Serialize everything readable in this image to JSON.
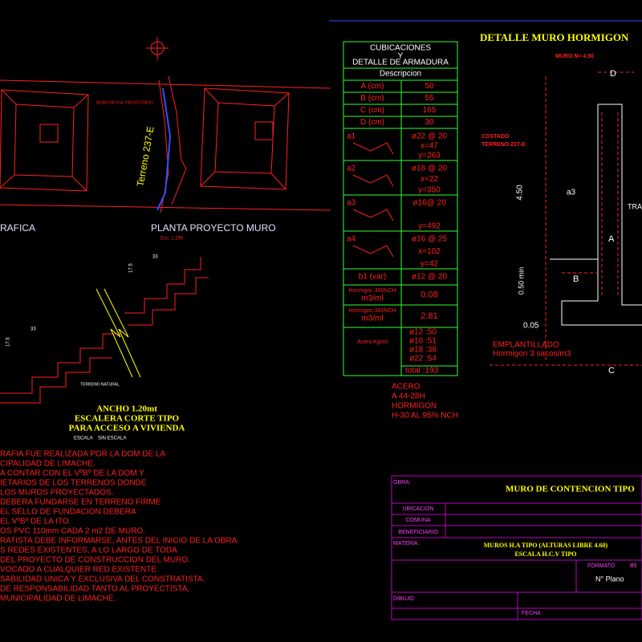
{
  "plan": {
    "left_label": "RAFICA",
    "title": "PLANTA PROYECTO MURO",
    "scale": "Esc. 1:250",
    "terrain": "Terreno 237-E",
    "note": "MURO DE H.A. PROYECTADO"
  },
  "stair": {
    "title": "ANCHO 1.20mt",
    "subtitle": "ESCALERA CORTE TIPO",
    "subtitle2": "PARA ACCESO A VIVIENDA",
    "scale_label": "ESCALA",
    "scale_value": "SIN ESCALA",
    "tread": "33",
    "riser": "17.5",
    "tread2": "33",
    "riser2": "17.5",
    "ground": "TERRENO NATURAL"
  },
  "table": {
    "title": "CUBICACIONES",
    "title2": "Y",
    "title3": "DETALLE DE ARMADURA",
    "header": "Descripcion",
    "dims": [
      [
        "A (cm)",
        "50"
      ],
      [
        "B (cm)",
        "55"
      ],
      [
        "C (cm)",
        "165"
      ],
      [
        "D (cm)",
        "30"
      ]
    ],
    "bars": [
      {
        "name": "a1",
        "spec": [
          "ø22 @ 20",
          "x=47",
          "y=263"
        ]
      },
      {
        "name": "a2",
        "spec": [
          "ø18 @ 20",
          "x=22",
          "y=350"
        ]
      },
      {
        "name": "a3",
        "spec": [
          "ø16@ 20",
          "y=492"
        ]
      },
      {
        "name": "a4",
        "spec": [
          "ø16 @ 25",
          "x=102",
          "y=42"
        ]
      }
    ],
    "b1": [
      "b1 (var)",
      "ø12 @ 20"
    ],
    "concrete": [
      [
        "Hormigon 300NCH",
        "m3/ml",
        "0.08"
      ],
      [
        "Hormigon 300NCH",
        "m3/ml",
        "2.81"
      ]
    ],
    "steel": {
      "label": "Acero Kg/ml",
      "items": [
        "ø12 :50",
        "ø16 :51",
        "ø18 :38",
        "ø22 :54"
      ],
      "total": "total :193"
    }
  },
  "materials": [
    "ACERO",
    "A 44-28H",
    "HORMIGON",
    "H-30 AL 95% NCH"
  ],
  "notes": [
    "RAFIA FUE REALIZADA POR LA DOM DE LA",
    "CIPALIDAD DE LIMACHE.",
    "A CONTAR CON EL VºBº DE LA DOM Y",
    "IETARIOS DE LOS TERRENOS DONDE",
    "LOS MUROS PROYECTADOS.",
    "DEBERA FUNDARSE EN TERRENO FIRME",
    "EL SELLO DE FUNDACION DEBERA",
    "EL VºBº DE LA ITO.",
    "OS PVC 110mm CADA 2 m2 DE MURO.",
    "RATISTA DEBE INFORMARSE, ANTES DEL INICIO DE LA OBRA.",
    "S REDES EXISTENTES, A LO LARGO DE TODA",
    "DEL PROYECTO DE CONSTRUCCION DEL MURO.",
    "VOCADO A CUALQUIER RED EXISTENTE",
    "SABILIDAD UNICA Y EXCLUSIVA DEL CONSTRATISTA.",
    "DE RESPONSABILIDAD TANTO AL PROYECTISTA,",
    "MUNICIPALIDAD DE LIMACHE."
  ],
  "detail": {
    "title": "DETALLE MURO HORMIGON",
    "wall": "MURO N= 4.50",
    "side": "COSTADO",
    "side2": "TERRENO 237-E",
    "height": "4.50",
    "d": "D",
    "a3": "a3",
    "a": "A",
    "b": "B",
    "min": "0.50 min",
    "offset": "0.05",
    "base": "EMPLANTILLADO",
    "base2": "Hormigon 3 sacos/m3",
    "c": "C",
    "cut": "TRA"
  },
  "title_block": {
    "obra": "OBRA:",
    "name": "MURO DE CONTENCION  TIPO",
    "ubicacion": "UBICACION",
    "comuna": "COMUNA",
    "beneficiario": "BENEFICIARIO",
    "materia": "MATERIA:",
    "materia_text": "MUROS H.A TIPO (ALTURAS LIBRE 4.60)",
    "escala": "ESCALA H.C.V TIPO",
    "formato": "FORMATO",
    "formato_value": "B5",
    "plano": "N° Plano",
    "dibujo": "DIBUJO",
    "fecha": "FECHA"
  }
}
